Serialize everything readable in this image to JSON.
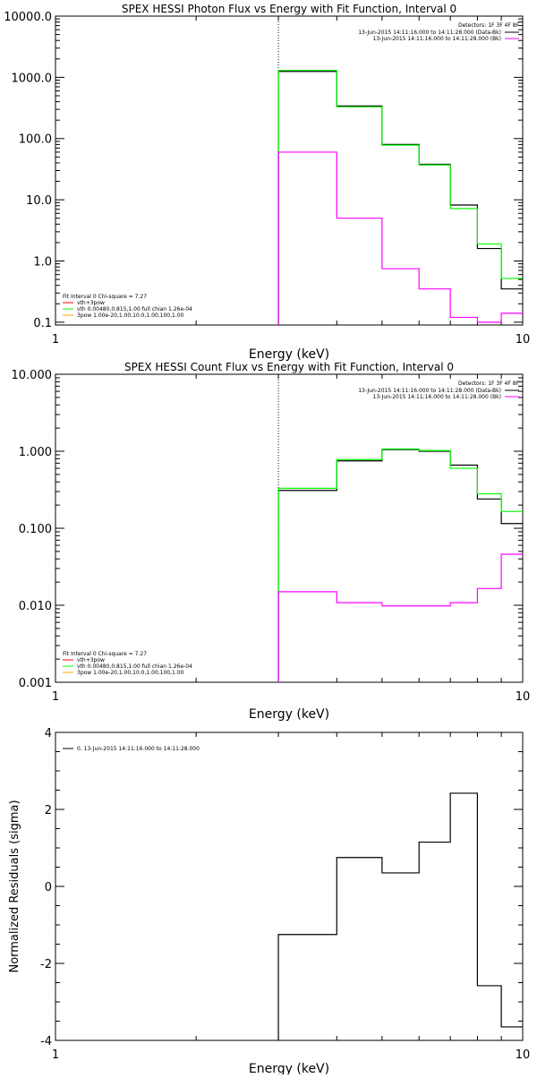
{
  "chart_data": [
    {
      "type": "line",
      "title": "SPEX HESSI Photon Flux vs Energy with Fit Function, Interval 0",
      "xlabel": "Energy (keV)",
      "ylabel": "",
      "xscale": "log",
      "yscale": "log",
      "xlim": [
        1,
        10
      ],
      "ylim": [
        0.09,
        10000
      ],
      "x_ticks": [
        {
          "v": 1,
          "label": "1"
        },
        {
          "v": 10,
          "label": "10"
        }
      ],
      "y_ticks": [
        {
          "v": 0.1,
          "label": "0.1"
        },
        {
          "v": 1,
          "label": "1.0"
        },
        {
          "v": 10,
          "label": "10.0"
        },
        {
          "v": 100,
          "label": "100.0"
        },
        {
          "v": 1000,
          "label": "1000.0"
        },
        {
          "v": 10000,
          "label": "10000.0"
        }
      ],
      "marker_line_x": 3.0,
      "legend_right": {
        "header": "Detectors: 1F 3F 4F 8F",
        "entries": [
          {
            "text": "13-Jun-2015 14:11:16.000 to 14:11:28.000 (Data-Bk)",
            "color": "#000000"
          },
          {
            "text": "13-Jun-2015 14:11:16.000 to 14:11:28.000 (Bk)",
            "color": "#ff00ff"
          }
        ]
      },
      "legend_left": {
        "header": "Fit Interval 0   Chi-square = 7.27",
        "entries": [
          {
            "text": "vth+3pow",
            "color": "#ff0000"
          },
          {
            "text": "vth 0.00480,0.815,1.00  full chian 1.26e-04",
            "color": "#00ff00"
          },
          {
            "text": "3pow 1.00e-20,1.00,10.0,1.00,100,1.00",
            "color": "#ffa500"
          }
        ]
      },
      "series": [
        {
          "color": "#000000",
          "edges": [
            3.0,
            4.0,
            5.0,
            6.0,
            7.0,
            8.0,
            9.0,
            10.0
          ],
          "values": [
            1250,
            340,
            80,
            38,
            8.2,
            1.6,
            0.35
          ]
        },
        {
          "color": "#00ff00",
          "edges": [
            3.0,
            4.0,
            5.0,
            6.0,
            7.0,
            8.0,
            9.0,
            10.0
          ],
          "values": [
            1300,
            330,
            78,
            37,
            7.2,
            1.9,
            0.52
          ]
        },
        {
          "color": "#ff00ff",
          "edges": [
            3.0,
            4.0,
            5.0,
            6.0,
            7.0,
            8.0,
            9.0,
            10.0
          ],
          "values": [
            60,
            5.0,
            0.75,
            0.35,
            0.12,
            0.1,
            0.14
          ]
        }
      ]
    },
    {
      "type": "line",
      "title": "SPEX HESSI Count Flux vs Energy with Fit Function, Interval 0",
      "xlabel": "Energy (keV)",
      "ylabel": "",
      "xscale": "log",
      "yscale": "log",
      "xlim": [
        1,
        10
      ],
      "ylim": [
        0.001,
        10
      ],
      "x_ticks": [
        {
          "v": 1,
          "label": "1"
        },
        {
          "v": 10,
          "label": "10"
        }
      ],
      "y_ticks": [
        {
          "v": 0.001,
          "label": "0.001"
        },
        {
          "v": 0.01,
          "label": "0.010"
        },
        {
          "v": 0.1,
          "label": "0.100"
        },
        {
          "v": 1,
          "label": "1.000"
        },
        {
          "v": 10,
          "label": "10.000"
        }
      ],
      "marker_line_x": 3.0,
      "legend_right": {
        "header": "Detectors: 1F 3F 4F 8F",
        "entries": [
          {
            "text": "13-Jun-2015 14:11:16.000 to 14:11:28.000 (Data-Bk)",
            "color": "#000000"
          },
          {
            "text": "13-Jun-2015 14:11:16.000 to 14:11:28.000 (Bk)",
            "color": "#ff00ff"
          }
        ]
      },
      "legend_left": {
        "header": "Fit Interval 0   Chi-square = 7.27",
        "entries": [
          {
            "text": "vth+3pow",
            "color": "#ff0000"
          },
          {
            "text": "vth 0.00480,0.815,1.00  full chian 1.26e-04",
            "color": "#00ff00"
          },
          {
            "text": "3pow 1.00e-20,1.00,10.0,1.00,100,1.00",
            "color": "#ffa500"
          }
        ]
      },
      "series": [
        {
          "color": "#000000",
          "edges": [
            3.0,
            4.0,
            5.0,
            6.0,
            7.0,
            8.0,
            9.0,
            10.0
          ],
          "values": [
            0.31,
            0.75,
            1.05,
            1.0,
            0.66,
            0.24,
            0.115
          ]
        },
        {
          "color": "#00ff00",
          "edges": [
            3.0,
            4.0,
            5.0,
            6.0,
            7.0,
            8.0,
            9.0,
            10.0
          ],
          "values": [
            0.33,
            0.78,
            1.07,
            1.02,
            0.6,
            0.28,
            0.165
          ]
        },
        {
          "color": "#ff00ff",
          "edges": [
            3.0,
            4.0,
            5.0,
            6.0,
            7.0,
            8.0,
            9.0,
            10.0
          ],
          "values": [
            0.015,
            0.0108,
            0.0098,
            0.0098,
            0.0108,
            0.0165,
            0.046
          ]
        }
      ]
    },
    {
      "type": "line",
      "title": "",
      "xlabel": "Energy (keV)",
      "ylabel": "Normalized Residuals (sigma)",
      "xscale": "log",
      "yscale": "linear",
      "xlim": [
        1,
        10
      ],
      "ylim": [
        -4,
        4
      ],
      "x_ticks": [
        {
          "v": 1,
          "label": "1"
        },
        {
          "v": 10,
          "label": "10"
        }
      ],
      "y_ticks": [
        {
          "v": -4,
          "label": "-4"
        },
        {
          "v": -2,
          "label": "-2"
        },
        {
          "v": 0,
          "label": "0"
        },
        {
          "v": 2,
          "label": "2"
        },
        {
          "v": 4,
          "label": "4"
        }
      ],
      "legend_left": {
        "header": "",
        "entries": [
          {
            "text": "0. 13-Jun-2015 14:11:16.000 to 14:11:28.000",
            "color": "#000000"
          }
        ]
      },
      "series": [
        {
          "color": "#000000",
          "edges": [
            3.0,
            4.0,
            5.0,
            6.0,
            7.0,
            8.0,
            9.0,
            10.0
          ],
          "values": [
            -1.25,
            0.75,
            0.35,
            1.15,
            2.42,
            -2.58,
            -3.65
          ]
        }
      ]
    }
  ]
}
